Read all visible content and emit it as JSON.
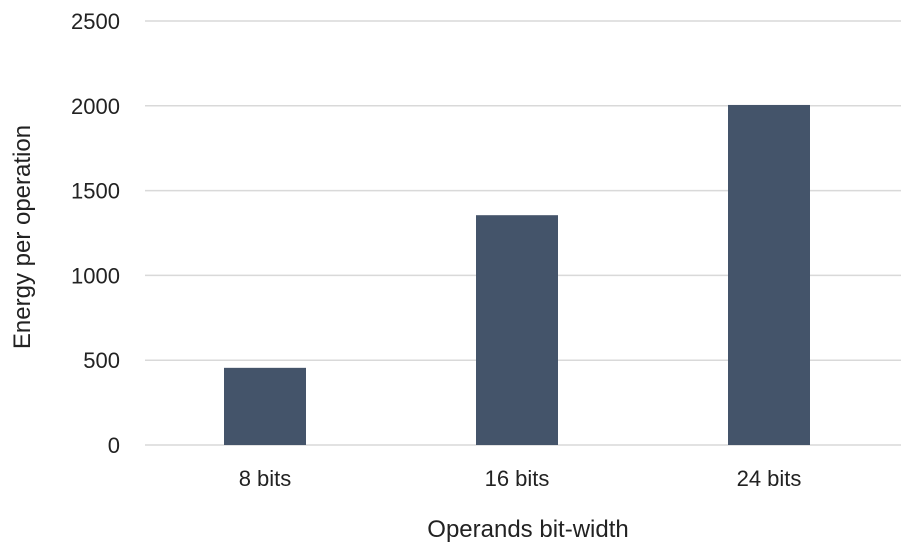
{
  "chart_data": {
    "type": "bar",
    "title": "",
    "xlabel": "Operands bit-width",
    "ylabel": "Energy per operation",
    "categories": [
      "8 bits",
      "16 bits",
      "24 bits"
    ],
    "values": [
      455,
      1355,
      2005
    ],
    "ylim": [
      0,
      2500
    ],
    "yticks": [
      0,
      500,
      1000,
      1500,
      2000,
      2500
    ],
    "grid": true,
    "legend": "none",
    "bar_color": "#44546a",
    "grid_color": "#d9d9d9"
  }
}
